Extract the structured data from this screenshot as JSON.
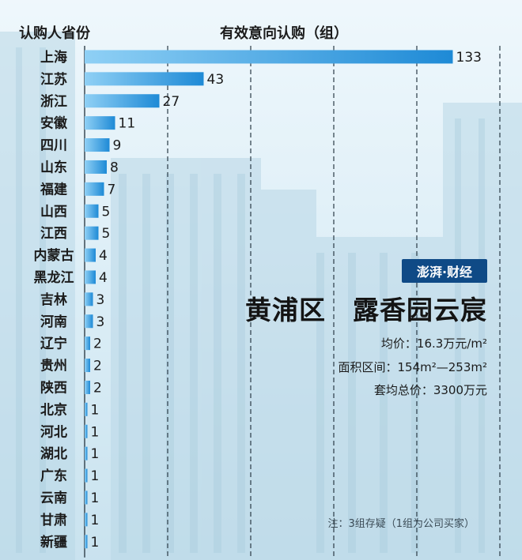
{
  "header": {
    "left_label": "认购人省份",
    "right_label": "有效意向认购（组）"
  },
  "badge": {
    "text": "澎湃·财经"
  },
  "project": {
    "title": "黄浦区　露香园云宸",
    "avg_price": "均价：16.3万元/m²",
    "area_range": "面积区间：154m²—253m²",
    "total_price": "套均总价：3300万元"
  },
  "note": "注：3组存疑（1组为公司买家）",
  "colors": {
    "bar": "#1e8ad6",
    "bar_light": "#8fd0f5",
    "grid": "#2a3a45"
  },
  "chart_data": {
    "type": "bar",
    "orientation": "horizontal",
    "categories": [
      "上海",
      "江苏",
      "浙江",
      "安徽",
      "四川",
      "山东",
      "福建",
      "山西",
      "江西",
      "内蒙古",
      "黑龙江",
      "吉林",
      "河南",
      "辽宁",
      "贵州",
      "陕西",
      "北京",
      "河北",
      "湖北",
      "广东",
      "云南",
      "甘肃",
      "新疆"
    ],
    "values": [
      133,
      43,
      27,
      11,
      9,
      8,
      7,
      5,
      5,
      4,
      4,
      3,
      3,
      2,
      2,
      2,
      1,
      1,
      1,
      1,
      1,
      1,
      1
    ],
    "xlabel": "有效意向认购（组）",
    "ylabel": "认购人省份",
    "xlim": [
      0,
      150
    ],
    "xticks": [
      0,
      30,
      60,
      90,
      120,
      150
    ],
    "grid": "vertical dashed"
  }
}
